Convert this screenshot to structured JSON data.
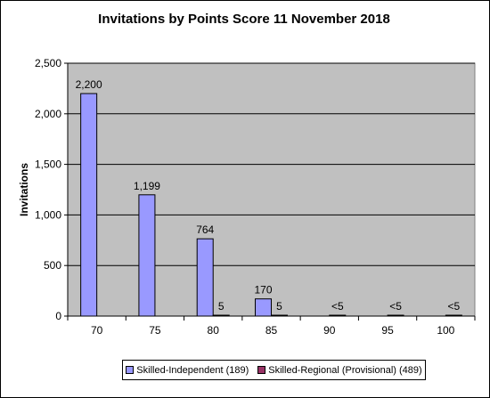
{
  "chart_data": {
    "type": "bar",
    "title": "Invitations by Points Score 11 November 2018",
    "xlabel": "",
    "ylabel": "Invitations",
    "ylim": [
      0,
      2500
    ],
    "yticks": [
      0,
      500,
      1000,
      1500,
      2000,
      2500
    ],
    "ytick_labels": [
      "0",
      "500",
      "1,000",
      "1,500",
      "2,000",
      "2,500"
    ],
    "categories": [
      "70",
      "75",
      "80",
      "85",
      "90",
      "95",
      "100"
    ],
    "grid": true,
    "plot_background": "#c0c0c0",
    "legend_position": "bottom",
    "series": [
      {
        "name": "Skilled-Independent (189)",
        "color": "#9999ff",
        "values": [
          2200,
          1199,
          764,
          170,
          0,
          0,
          0
        ],
        "labels": [
          "2,200",
          "1,199",
          "764",
          "170",
          "",
          "",
          ""
        ]
      },
      {
        "name": "Skilled-Regional (Provisional) (489)",
        "color": "#993366",
        "values": [
          0,
          0,
          5,
          5,
          4,
          4,
          4
        ],
        "labels": [
          "",
          "",
          "5",
          "5",
          "<5",
          "<5",
          "<5"
        ]
      }
    ]
  }
}
